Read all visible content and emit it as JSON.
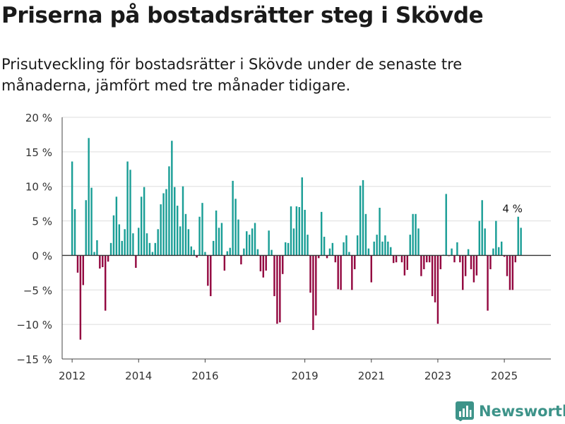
{
  "header": {
    "title": "Priserna på bostadsrätter steg i Skövde",
    "subtitle": "Prisutveckling för bostadsrätter i Skövde under de senaste tre månaderna, jämfört med tre månader tidigare."
  },
  "brand": {
    "name": "Newsworthy",
    "icon": "bar-chart-logo-icon",
    "color": "#3d9389"
  },
  "colors": {
    "positive": "#1a9e96",
    "negative": "#930840",
    "grid": "#dddddd",
    "zero_line": "#333333"
  },
  "chart_data": {
    "type": "bar",
    "title": "",
    "xlabel": "",
    "ylabel": "",
    "ylim": [
      -15,
      20
    ],
    "yticks": [
      20,
      15,
      10,
      5,
      0,
      -5,
      -10,
      -15
    ],
    "ytick_labels": [
      "20 %",
      "15 %",
      "10 %",
      "5 %",
      "0 %",
      "−5 %",
      "−10 %",
      "−15 %"
    ],
    "xlim": [
      2011.7,
      2026.4
    ],
    "xticks": [
      2012,
      2014,
      2016,
      2019,
      2021,
      2023,
      2025
    ],
    "xtick_labels": [
      "2012",
      "2014",
      "2016",
      "2019",
      "2021",
      "2023",
      "2025"
    ],
    "grid": true,
    "legend": "none",
    "annotation": {
      "text": "4 %",
      "anchor": "last-bar"
    },
    "x": [
      2012.0,
      2012.083,
      2012.167,
      2012.25,
      2012.333,
      2012.417,
      2012.5,
      2012.583,
      2012.667,
      2012.75,
      2012.833,
      2012.917,
      2013.0,
      2013.083,
      2013.167,
      2013.25,
      2013.333,
      2013.417,
      2013.5,
      2013.583,
      2013.667,
      2013.75,
      2013.833,
      2013.917,
      2014.0,
      2014.083,
      2014.167,
      2014.25,
      2014.333,
      2014.417,
      2014.5,
      2014.583,
      2014.667,
      2014.75,
      2014.833,
      2014.917,
      2015.0,
      2015.083,
      2015.167,
      2015.25,
      2015.333,
      2015.417,
      2015.5,
      2015.583,
      2015.667,
      2015.75,
      2015.833,
      2015.917,
      2016.0,
      2016.083,
      2016.167,
      2016.25,
      2016.333,
      2016.417,
      2016.5,
      2016.583,
      2016.667,
      2016.75,
      2016.833,
      2016.917,
      2017.0,
      2017.083,
      2017.167,
      2017.25,
      2017.333,
      2017.417,
      2017.5,
      2017.583,
      2017.667,
      2017.75,
      2017.833,
      2017.917,
      2018.0,
      2018.083,
      2018.167,
      2018.25,
      2018.333,
      2018.417,
      2018.5,
      2018.583,
      2018.667,
      2018.75,
      2018.833,
      2018.917,
      2019.0,
      2019.083,
      2019.167,
      2019.25,
      2019.333,
      2019.417,
      2019.5,
      2019.583,
      2019.667,
      2019.75,
      2019.833,
      2019.917,
      2020.0,
      2020.083,
      2020.167,
      2020.25,
      2020.333,
      2020.417,
      2020.5,
      2020.583,
      2020.667,
      2020.75,
      2020.833,
      2020.917,
      2021.0,
      2021.083,
      2021.167,
      2021.25,
      2021.333,
      2021.417,
      2021.5,
      2021.583,
      2021.667,
      2021.75,
      2021.833,
      2021.917,
      2022.0,
      2022.083,
      2022.167,
      2022.25,
      2022.333,
      2022.417,
      2022.5,
      2022.583,
      2022.667,
      2022.75,
      2022.833,
      2022.917,
      2023.0,
      2023.083,
      2023.167,
      2023.25,
      2023.333,
      2023.417,
      2023.5,
      2023.583,
      2023.667,
      2023.75,
      2023.833,
      2023.917,
      2024.0,
      2024.083,
      2024.167,
      2024.25,
      2024.333,
      2024.417,
      2024.5,
      2024.583,
      2024.667,
      2024.75,
      2024.833,
      2024.917,
      2025.0,
      2025.083,
      2025.167,
      2025.25,
      2025.333,
      2025.417,
      2025.5
    ],
    "values": [
      13.6,
      6.7,
      -2.5,
      -12.2,
      -4.3,
      8.0,
      17.0,
      9.8,
      0.5,
      2.2,
      -1.9,
      -1.7,
      -8.0,
      -0.9,
      1.8,
      5.8,
      8.5,
      4.5,
      2.1,
      3.8,
      13.6,
      12.4,
      3.2,
      -1.8,
      4.0,
      8.5,
      9.9,
      3.2,
      1.8,
      0.5,
      1.8,
      3.8,
      7.4,
      9.0,
      9.6,
      12.9,
      16.6,
      9.9,
      7.2,
      4.2,
      10.0,
      6.0,
      3.8,
      1.3,
      0.8,
      -0.3,
      5.6,
      7.6,
      0.5,
      -4.4,
      -5.9,
      2.1,
      6.5,
      4.0,
      4.7,
      -2.2,
      0.6,
      1.1,
      10.8,
      8.2,
      5.2,
      -1.3,
      1.0,
      3.5,
      3.0,
      3.9,
      4.7,
      0.9,
      -2.3,
      -3.2,
      -2.2,
      3.6,
      0.8,
      -5.9,
      -9.9,
      -9.7,
      -2.7,
      1.9,
      1.8,
      7.1,
      3.9,
      7.1,
      7.0,
      11.3,
      6.6,
      3.0,
      -5.4,
      -10.8,
      -8.7,
      -0.4,
      6.3,
      2.7,
      -0.4,
      1.0,
      1.8,
      -1.0,
      -4.9,
      -5.0,
      1.9,
      2.9,
      0.5,
      -5.0,
      -2.0,
      2.9,
      10.1,
      10.9,
      6.0,
      1.0,
      -3.9,
      2.0,
      3.0,
      6.9,
      2.0,
      2.9,
      2.0,
      1.2,
      -1.1,
      -1.0,
      -0.1,
      -1.0,
      -2.9,
      -2.1,
      3.0,
      6.0,
      6.0,
      3.9,
      -3.0,
      -2.0,
      -1.0,
      -1.0,
      -5.9,
      -6.8,
      -9.9,
      -2.0,
      0.1,
      8.9,
      -0.1,
      1.0,
      -1.0,
      1.9,
      -1.0,
      -5.0,
      -3.0,
      0.9,
      -2.0,
      -3.9,
      -2.9,
      5.0,
      8.0,
      3.9,
      -8.0,
      -2.0,
      1.0,
      5.0,
      1.2,
      2.0,
      -0.2,
      -3.0,
      -5.0,
      -5.0,
      -1.0,
      5.6,
      4.0
    ]
  }
}
